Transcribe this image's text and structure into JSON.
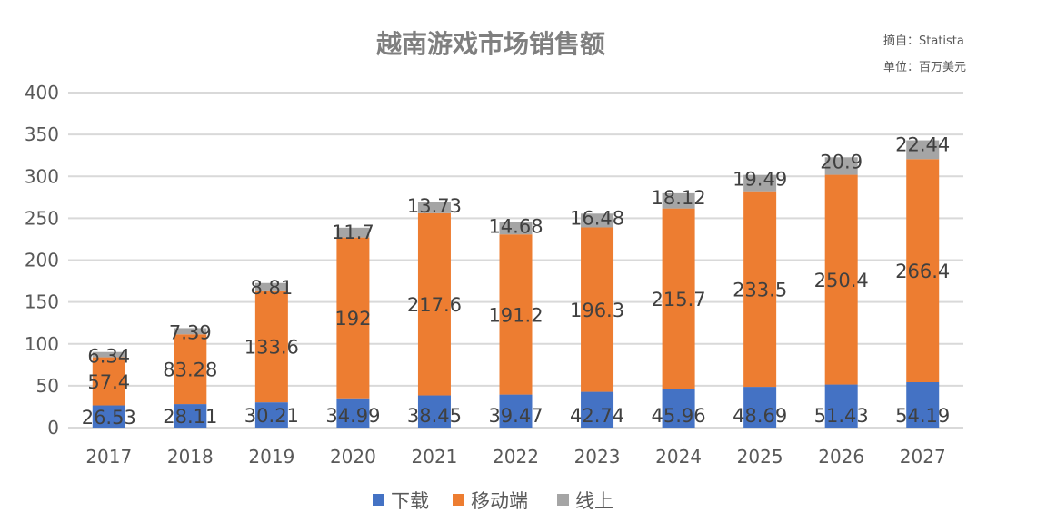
{
  "chart_data": {
    "type": "bar",
    "stacked": true,
    "title": "越南游戏市场销售额",
    "source": "摘自：Statista",
    "unit": "单位：百万美元",
    "xlabel": "",
    "ylabel": "",
    "ylim": [
      0,
      400
    ],
    "yticks": [
      0,
      50,
      100,
      150,
      200,
      250,
      300,
      350,
      400
    ],
    "grid": true,
    "legend_position": "bottom",
    "categories": [
      "2017",
      "2018",
      "2019",
      "2020",
      "2021",
      "2022",
      "2023",
      "2024",
      "2025",
      "2026",
      "2027"
    ],
    "series": [
      {
        "name": "下载",
        "color": "#4472C4",
        "values": [
          26.53,
          28.11,
          30.21,
          34.99,
          38.45,
          39.47,
          42.74,
          45.96,
          48.69,
          51.43,
          54.19
        ]
      },
      {
        "name": "移动端",
        "color": "#ED7D31",
        "values": [
          57.4,
          83.28,
          133.6,
          192,
          217.6,
          191.2,
          196.3,
          215.7,
          233.5,
          250.4,
          266.4
        ]
      },
      {
        "name": "线上",
        "color": "#A5A5A5",
        "values": [
          6.34,
          7.39,
          8.81,
          11.7,
          13.73,
          14.68,
          16.48,
          18.12,
          19.49,
          20.9,
          22.44
        ]
      }
    ]
  }
}
